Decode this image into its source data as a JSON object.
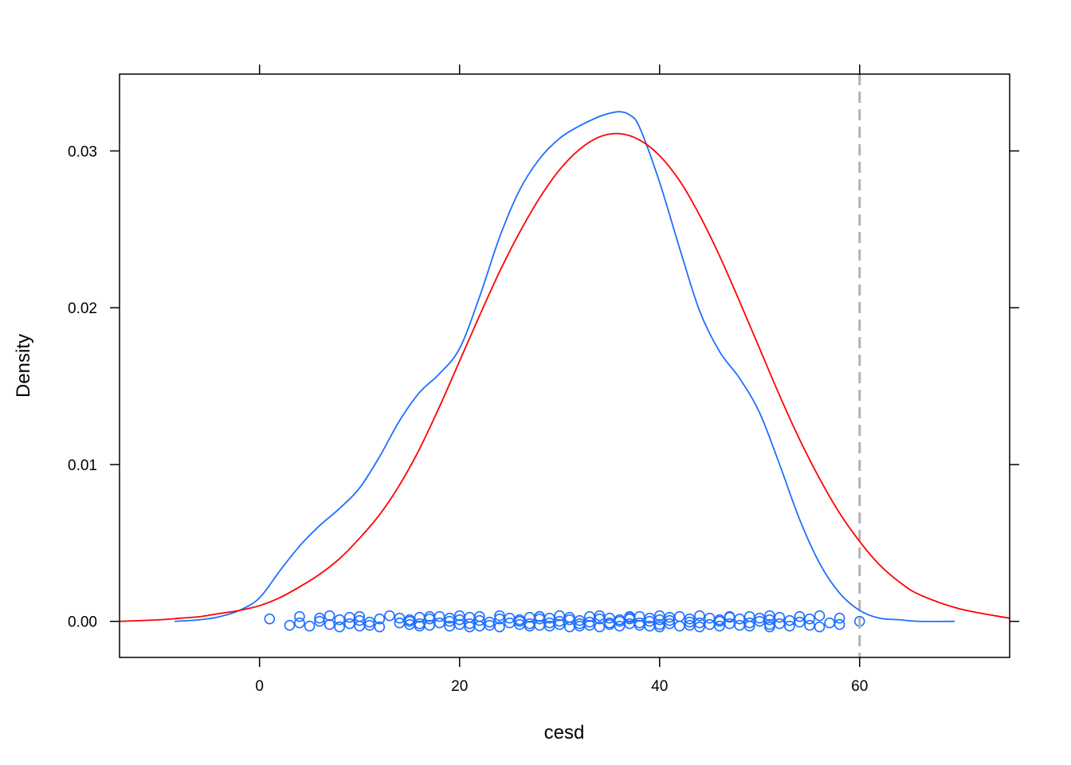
{
  "chart_data": {
    "type": "line",
    "xlabel": "cesd",
    "ylabel": "Density",
    "xlim": [
      -14,
      75
    ],
    "ylim": [
      -0.0023,
      0.0349
    ],
    "x_ticks": [
      0,
      20,
      40,
      60
    ],
    "y_ticks": [
      0.0,
      0.01,
      0.02,
      0.03
    ],
    "x_tick_labels": [
      "0",
      "20",
      "40",
      "60"
    ],
    "y_tick_labels": [
      "0.00",
      "0.01",
      "0.02",
      "0.03"
    ],
    "grid": false,
    "colors": {
      "density": "#1e6fff",
      "normal": "#ff0000",
      "reference": "#b3b3b3",
      "points": "#1e6fff"
    },
    "series": [
      {
        "kind": "kernel-density",
        "color": "#1e6fff",
        "x": [
          -8.5,
          -6,
          -4,
          -2,
          0,
          2,
          4,
          6,
          8,
          10,
          12,
          14,
          16,
          18,
          20,
          22,
          24,
          26,
          28,
          30,
          32,
          34,
          35,
          36,
          37,
          38,
          40,
          42,
          44,
          46,
          48,
          50,
          52,
          54,
          56,
          58,
          60,
          62,
          64,
          66,
          69.5
        ],
        "y": [
          0.0,
          0.0001,
          0.0003,
          0.0007,
          0.0015,
          0.0032,
          0.0048,
          0.0061,
          0.0072,
          0.0085,
          0.0105,
          0.0128,
          0.0146,
          0.0158,
          0.0174,
          0.0207,
          0.0245,
          0.0275,
          0.0295,
          0.0308,
          0.0316,
          0.0322,
          0.0324,
          0.0325,
          0.0323,
          0.0315,
          0.028,
          0.0238,
          0.0198,
          0.0172,
          0.0155,
          0.0133,
          0.01,
          0.0065,
          0.0037,
          0.0018,
          0.0007,
          0.0002,
          0.0001,
          0.0,
          0.0
        ]
      },
      {
        "kind": "normal-fit",
        "color": "#ff0000",
        "x": [
          -14,
          -10,
          -8,
          -6,
          -4,
          -2,
          0,
          2,
          4,
          6,
          8,
          10,
          12,
          14,
          16,
          18,
          20,
          22,
          24,
          26,
          28,
          30,
          32,
          34,
          36,
          38,
          40,
          42,
          44,
          46,
          48,
          50,
          52,
          54,
          56,
          58,
          60,
          62,
          64,
          66,
          70,
          75
        ],
        "y": [
          0.0,
          0.0001,
          0.0002,
          0.0003,
          0.0005,
          0.0007,
          0.001,
          0.0015,
          0.0022,
          0.003,
          0.004,
          0.0053,
          0.0068,
          0.0087,
          0.011,
          0.0137,
          0.0166,
          0.0195,
          0.0223,
          0.0248,
          0.027,
          0.0288,
          0.0301,
          0.0309,
          0.0311,
          0.0307,
          0.0297,
          0.0281,
          0.0259,
          0.0233,
          0.0204,
          0.0174,
          0.0144,
          0.0116,
          0.0091,
          0.0069,
          0.0051,
          0.0036,
          0.0025,
          0.0017,
          0.0008,
          0.0002
        ]
      }
    ],
    "reference_line": {
      "x": 60,
      "style": "dashed",
      "color": "#b3b3b3"
    },
    "rug_points": [
      1,
      3,
      4,
      4,
      5,
      6,
      6,
      7,
      7,
      8,
      8,
      9,
      9,
      10,
      10,
      10,
      11,
      11,
      12,
      12,
      13,
      14,
      14,
      15,
      15,
      15,
      16,
      16,
      16,
      17,
      17,
      17,
      18,
      18,
      19,
      19,
      19,
      20,
      20,
      20,
      21,
      21,
      21,
      22,
      22,
      22,
      23,
      23,
      24,
      24,
      24,
      25,
      25,
      26,
      26,
      26,
      27,
      27,
      27,
      28,
      28,
      28,
      28,
      29,
      29,
      29,
      30,
      30,
      30,
      31,
      31,
      31,
      32,
      32,
      32,
      33,
      33,
      33,
      34,
      34,
      34,
      35,
      35,
      35,
      36,
      36,
      36,
      37,
      37,
      37,
      37,
      38,
      38,
      38,
      39,
      39,
      39,
      40,
      40,
      40,
      40,
      41,
      41,
      41,
      42,
      42,
      43,
      43,
      43,
      44,
      44,
      44,
      45,
      45,
      46,
      46,
      46,
      47,
      47,
      47,
      48,
      48,
      49,
      49,
      49,
      50,
      50,
      51,
      51,
      51,
      51,
      52,
      52,
      53,
      53,
      54,
      54,
      55,
      55,
      56,
      56,
      57,
      58,
      58,
      60
    ]
  }
}
